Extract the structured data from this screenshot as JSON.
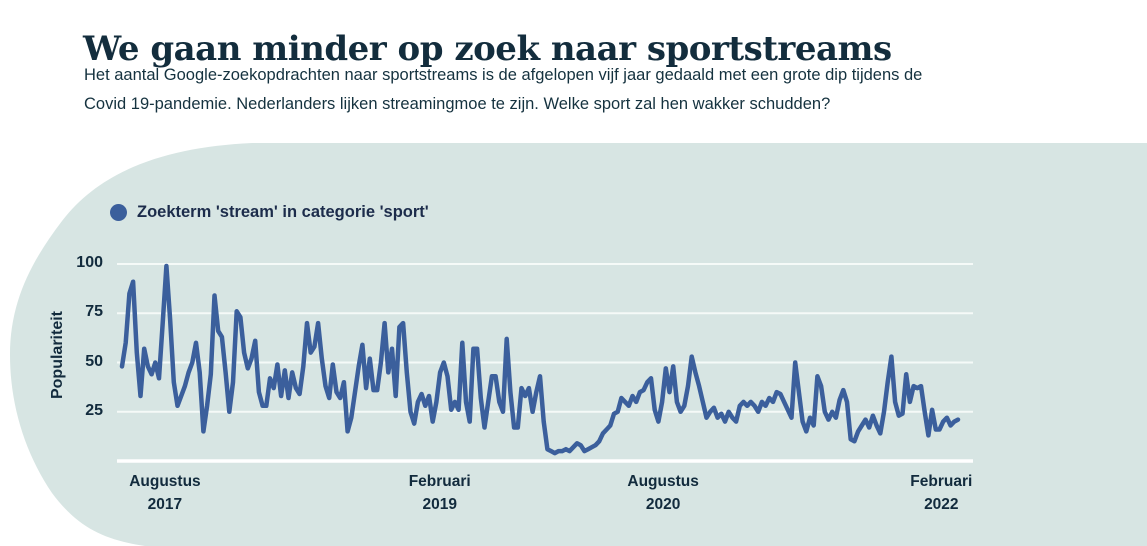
{
  "header": {
    "title": "We gaan minder op zoek naar sportstreams",
    "subtitle_line1": "Het aantal Google-zoekopdrachten naar sportstreams is de afgelopen vijf jaar gedaald met een grote dip tijdens de",
    "subtitle_line2": "Covid 19-pandemie. Nederlanders lijken streamingmoe te zijn. Welke sport zal hen wakker schudden?"
  },
  "legend": {
    "label": "Zoekterm 'stream' in categorie 'sport'"
  },
  "colors": {
    "accent_blue": "#3b5f9c",
    "panel_background": "#d7e5e3",
    "grid_line": "#f5faf8",
    "baseline": "#ffffff",
    "text_dark": "#132d3d"
  },
  "chart_data": {
    "type": "line",
    "title": "Zoekterm 'stream' in categorie 'sport'",
    "xlabel": "",
    "ylabel": "Populariteit",
    "ylim": [
      0,
      100
    ],
    "yticks": [
      100,
      75,
      50,
      25
    ],
    "grid": "horizontal white gridlines on light panel, solid white baseline at 0",
    "legend_position": "top-left",
    "x_tick_labels": [
      {
        "line1": "Augustus",
        "line2": "2017",
        "pos": 0.056
      },
      {
        "line1": "Februari",
        "line2": "2019",
        "pos": 0.377
      },
      {
        "line1": "Augustus",
        "line2": "2020",
        "pos": 0.638
      },
      {
        "line1": "Februari",
        "line2": "2022",
        "pos": 0.963
      }
    ],
    "x_range_description": "weekly values, Augustus 2017 through Februari 2022",
    "series": [
      {
        "name": "Zoekterm 'stream' in categorie 'sport'",
        "color": "#3b5f9c",
        "values": [
          48,
          60,
          85,
          91,
          55,
          33,
          57,
          48,
          44,
          50,
          42,
          70,
          99,
          72,
          40,
          28,
          33,
          38,
          45,
          50,
          60,
          45,
          15,
          28,
          44,
          84,
          66,
          63,
          45,
          25,
          40,
          76,
          73,
          55,
          47,
          52,
          61,
          35,
          28,
          28,
          42,
          37,
          49,
          33,
          46,
          32,
          45,
          37,
          34,
          48,
          70,
          55,
          58,
          70,
          52,
          38,
          32,
          49,
          35,
          32,
          40,
          15,
          22,
          35,
          48,
          59,
          37,
          52,
          36,
          36,
          50,
          70,
          45,
          57,
          33,
          68,
          70,
          45,
          25,
          19,
          30,
          34,
          28,
          33,
          20,
          30,
          45,
          50,
          43,
          26,
          30,
          26,
          60,
          30,
          20,
          57,
          57,
          32,
          17,
          30,
          43,
          43,
          30,
          25,
          62,
          35,
          17,
          17,
          37,
          33,
          37,
          25,
          35,
          43,
          20,
          6,
          5,
          4,
          5,
          5,
          6,
          5,
          7,
          9,
          8,
          5,
          6,
          7,
          8,
          10,
          14,
          16,
          18,
          24,
          25,
          32,
          30,
          28,
          33,
          30,
          35,
          36,
          40,
          42,
          26,
          20,
          30,
          47,
          35,
          48,
          30,
          25,
          28,
          38,
          53,
          45,
          38,
          30,
          22,
          25,
          27,
          22,
          24,
          20,
          25,
          22,
          20,
          28,
          30,
          28,
          30,
          28,
          25,
          30,
          28,
          32,
          30,
          35,
          34,
          30,
          26,
          22,
          50,
          35,
          20,
          15,
          22,
          18,
          43,
          38,
          25,
          21,
          25,
          22,
          31,
          36,
          30,
          11,
          10,
          15,
          18,
          21,
          17,
          23,
          18,
          14,
          25,
          40,
          53,
          30,
          23,
          24,
          44,
          30,
          38,
          37,
          38,
          25,
          13,
          26,
          16,
          16,
          20,
          22,
          18,
          20,
          21
        ]
      }
    ]
  }
}
